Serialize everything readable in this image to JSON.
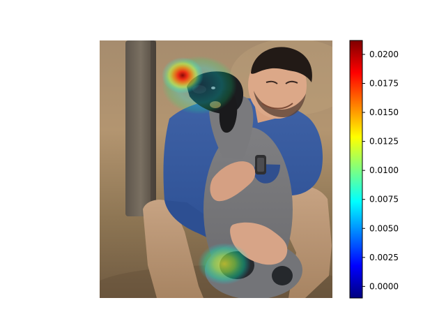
{
  "chart_data": {
    "type": "heatmap",
    "title": "",
    "xlabel": "",
    "ylabel": "",
    "image": {
      "description_visible": "photo of man hugging dog with attention heatmap overlay"
    },
    "heatmap_hotspots": [
      {
        "name": "dog-ear-top",
        "value": 0.0205
      },
      {
        "name": "dog-head-ring",
        "value": 0.01
      },
      {
        "name": "dog-hindquarter",
        "value": 0.0115
      }
    ],
    "colorbar": {
      "colormap": "jet",
      "vmin": -0.001,
      "vmax": 0.0212,
      "ticks": [
        0.0,
        0.0025,
        0.005,
        0.0075,
        0.01,
        0.0125,
        0.015,
        0.0175,
        0.02
      ],
      "tick_labels": [
        "0.0000",
        "0.0025",
        "0.0050",
        "0.0075",
        "0.0100",
        "0.0125",
        "0.0150",
        "0.0175",
        "0.0200"
      ]
    }
  },
  "colors": {
    "jet": [
      "#00007f",
      "#0000ff",
      "#007fff",
      "#00ffff",
      "#7fff7f",
      "#ffff00",
      "#ff7f00",
      "#ff0000",
      "#7f0000"
    ]
  }
}
